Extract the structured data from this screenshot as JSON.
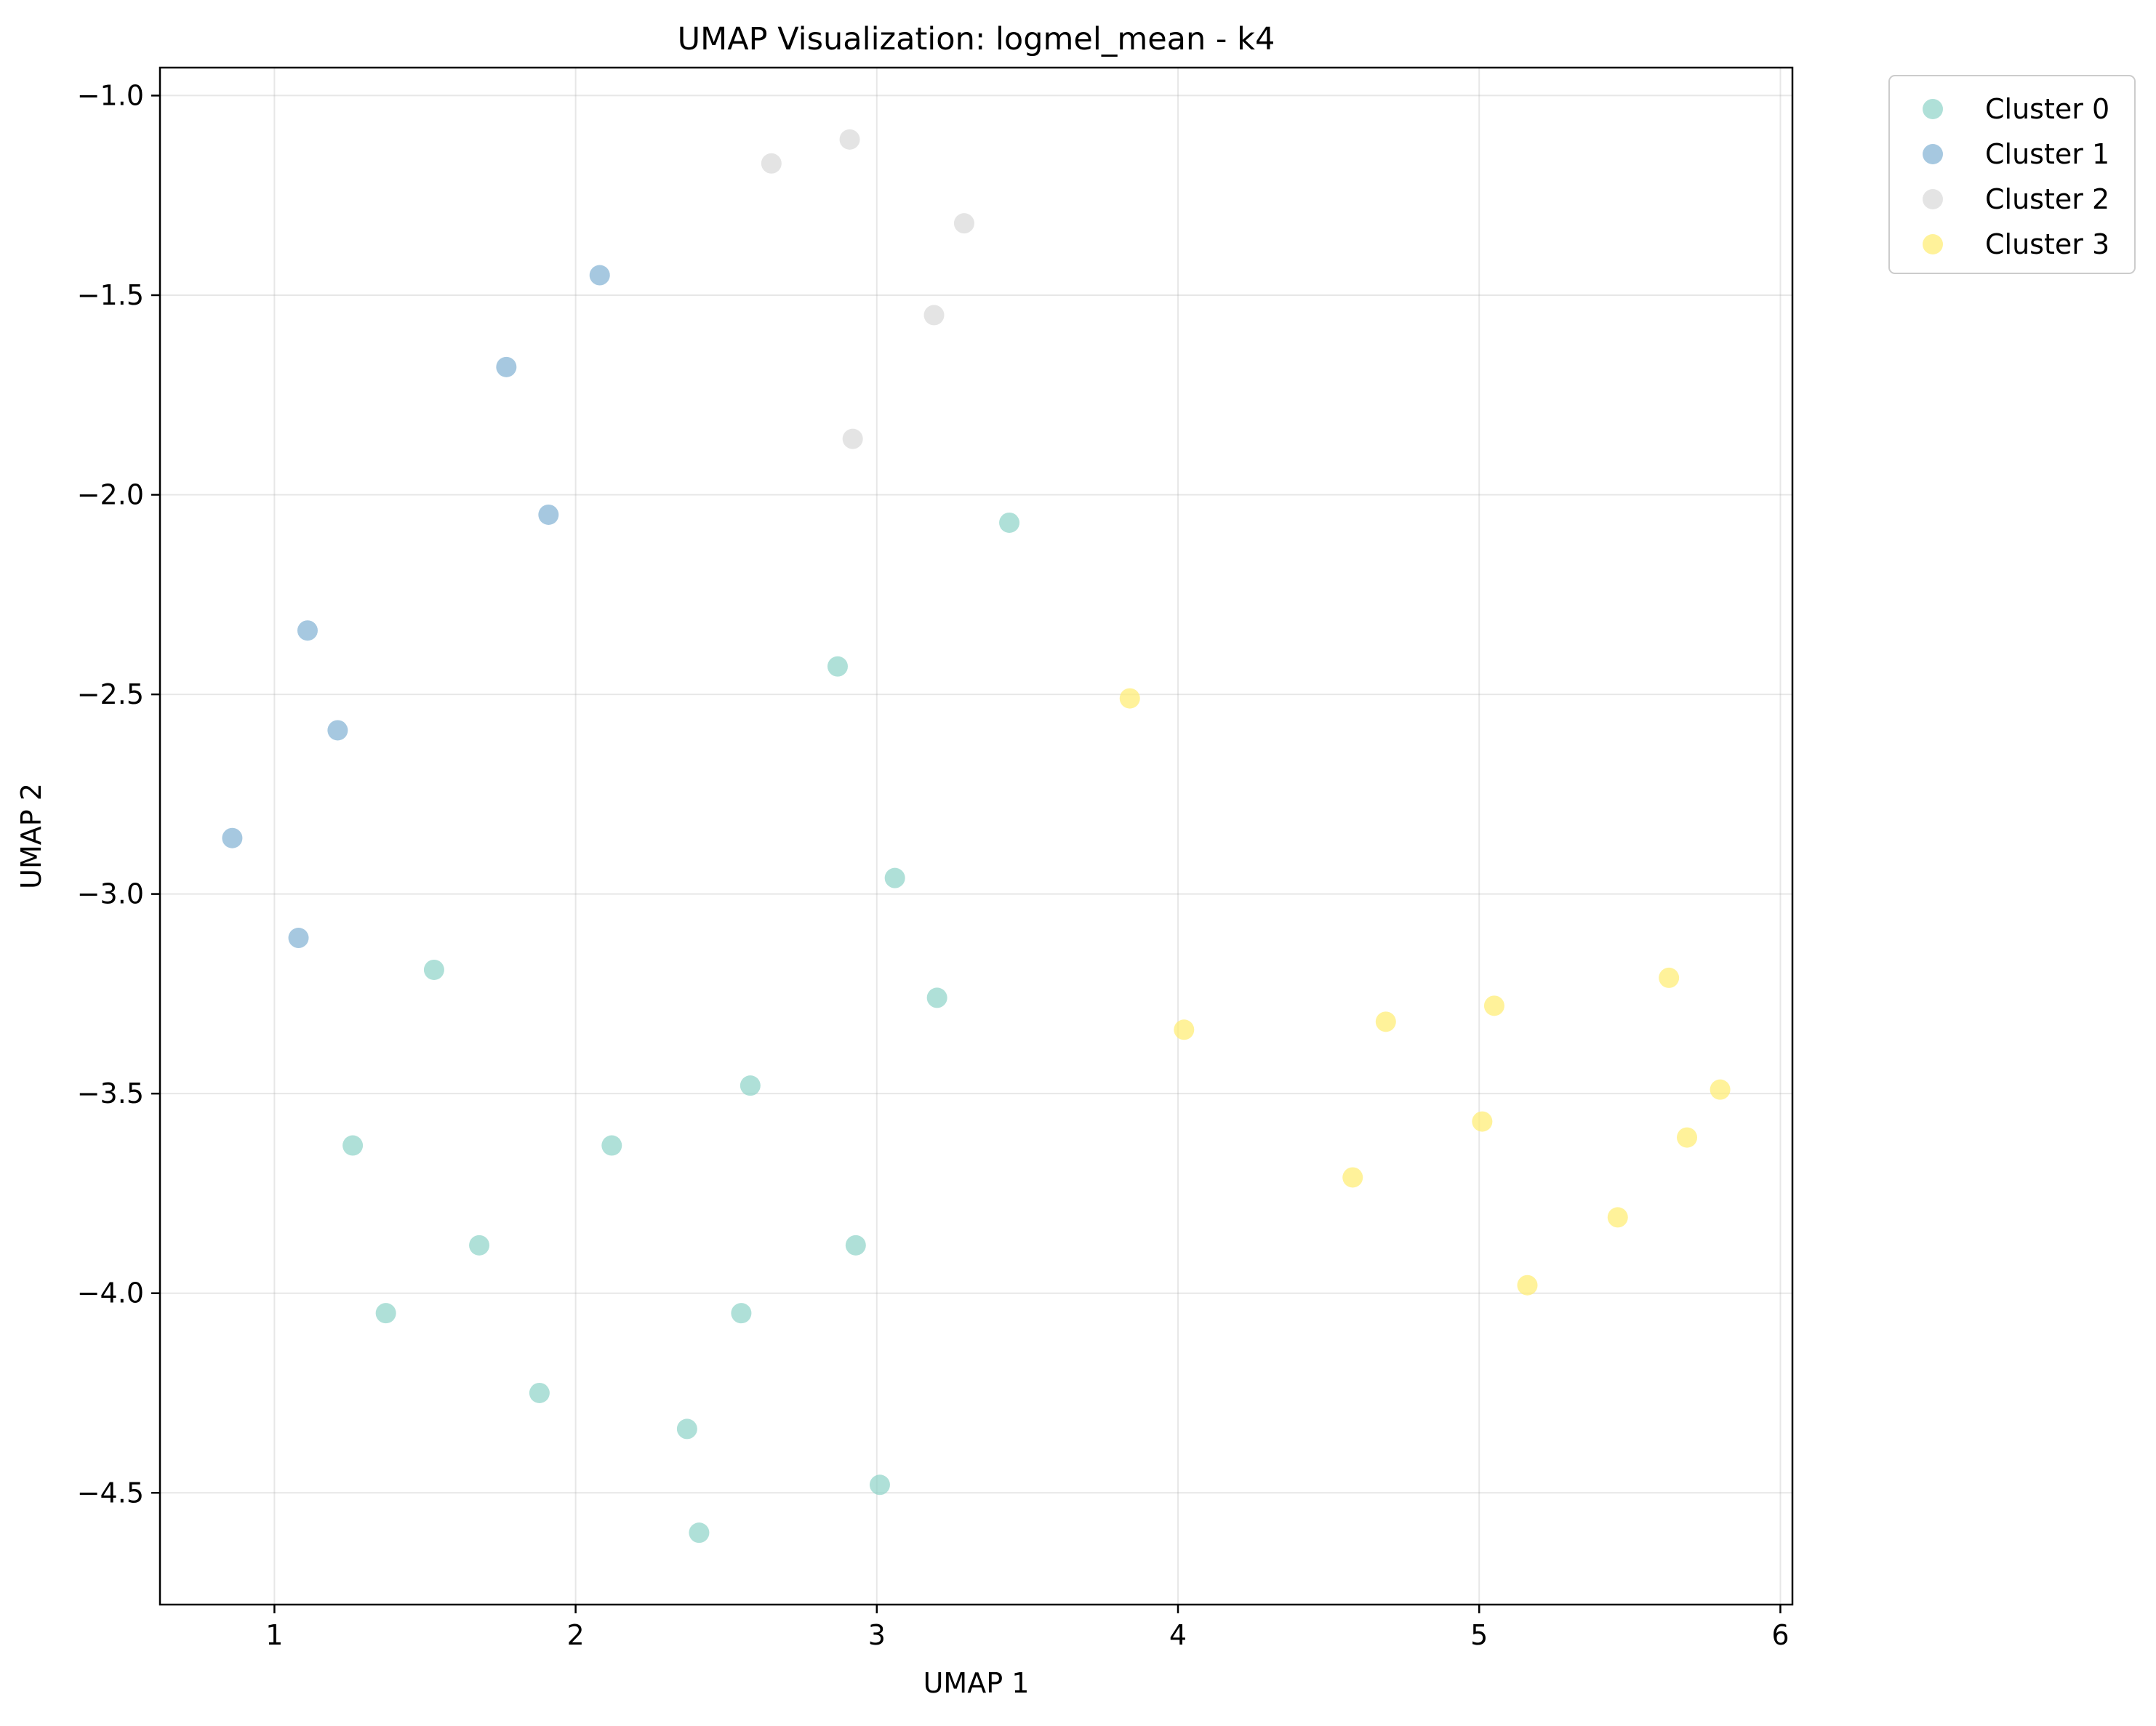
{
  "chart_data": {
    "type": "scatter",
    "title": "UMAP Visualization: logmel_mean - k4",
    "xlabel": "UMAP 1",
    "ylabel": "UMAP 2",
    "xlim": [
      0.62,
      6.04
    ],
    "ylim": [
      -4.78,
      -0.93
    ],
    "xticks": [
      1,
      2,
      3,
      4,
      5,
      6
    ],
    "yticks": [
      -1.0,
      -1.5,
      -2.0,
      -2.5,
      -3.0,
      -3.5,
      -4.0,
      -4.5
    ],
    "xtick_labels": [
      "1",
      "2",
      "3",
      "4",
      "5",
      "6"
    ],
    "ytick_labels": [
      "−1.0",
      "−1.5",
      "−2.0",
      "−2.5",
      "−3.0",
      "−3.5",
      "−4.0",
      "−4.5"
    ],
    "grid": true,
    "legend_position": "outside-top-right",
    "series": [
      {
        "name": "Cluster 0",
        "color": "#8dd3c7",
        "points": [
          [
            3.44,
            -2.07
          ],
          [
            2.87,
            -2.43
          ],
          [
            3.06,
            -2.96
          ],
          [
            3.2,
            -3.26
          ],
          [
            1.53,
            -3.19
          ],
          [
            2.58,
            -3.48
          ],
          [
            1.26,
            -3.63
          ],
          [
            2.12,
            -3.63
          ],
          [
            1.68,
            -3.88
          ],
          [
            2.93,
            -3.88
          ],
          [
            1.37,
            -4.05
          ],
          [
            2.55,
            -4.05
          ],
          [
            1.88,
            -4.25
          ],
          [
            2.37,
            -4.34
          ],
          [
            3.01,
            -4.48
          ],
          [
            2.41,
            -4.6
          ]
        ]
      },
      {
        "name": "Cluster 1",
        "color": "#80b1d3",
        "points": [
          [
            2.08,
            -1.45
          ],
          [
            1.77,
            -1.68
          ],
          [
            1.91,
            -2.05
          ],
          [
            1.11,
            -2.34
          ],
          [
            1.21,
            -2.59
          ],
          [
            0.86,
            -2.86
          ],
          [
            1.08,
            -3.11
          ]
        ]
      },
      {
        "name": "Cluster 2",
        "color": "#d9d9d9",
        "points": [
          [
            2.91,
            -1.11
          ],
          [
            2.65,
            -1.17
          ],
          [
            3.29,
            -1.32
          ],
          [
            3.19,
            -1.55
          ],
          [
            2.92,
            -1.86
          ]
        ]
      },
      {
        "name": "Cluster 3",
        "color": "#ffed6f",
        "points": [
          [
            3.84,
            -2.51
          ],
          [
            4.02,
            -3.34
          ],
          [
            4.69,
            -3.32
          ],
          [
            5.05,
            -3.28
          ],
          [
            5.63,
            -3.21
          ],
          [
            5.8,
            -3.49
          ],
          [
            5.01,
            -3.57
          ],
          [
            5.69,
            -3.61
          ],
          [
            4.58,
            -3.71
          ],
          [
            5.46,
            -3.81
          ],
          [
            5.16,
            -3.98
          ]
        ]
      }
    ]
  }
}
